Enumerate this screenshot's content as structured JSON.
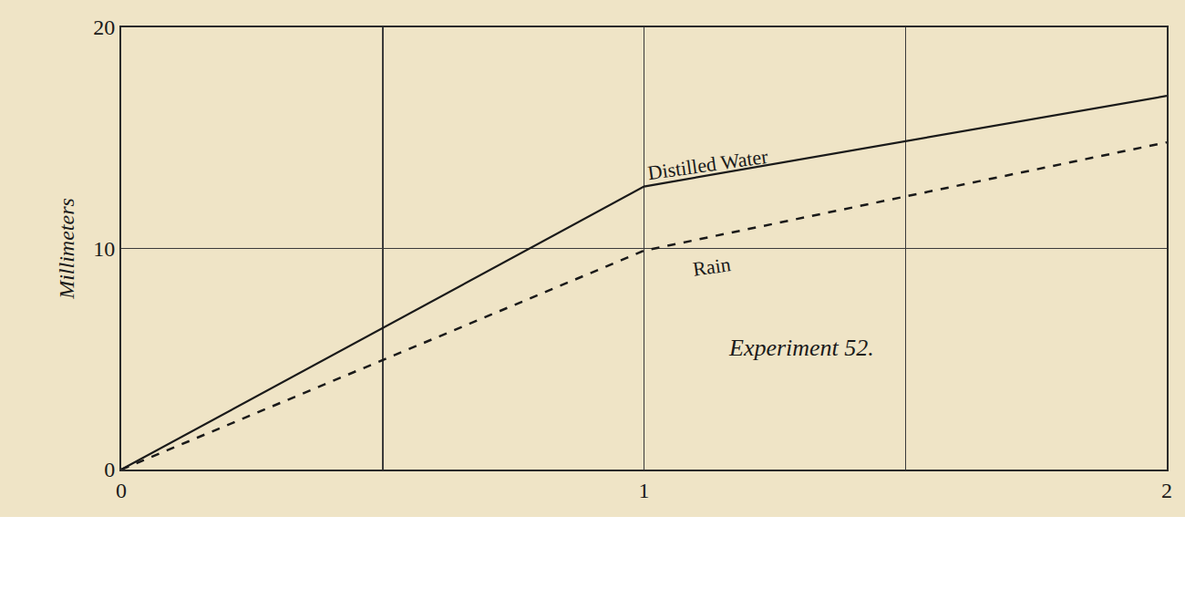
{
  "chart_data": {
    "type": "line",
    "x": [
      0,
      1,
      2
    ],
    "series": [
      {
        "name": "Distilled Water",
        "color": "#1a1a1a",
        "line_style": "solid",
        "values": [
          0,
          12.8,
          16.9
        ]
      },
      {
        "name": "Rain",
        "color": "#1a1a1a",
        "line_style": "dashed",
        "values": [
          0,
          9.9,
          14.8
        ]
      }
    ],
    "xlim": [
      0,
      2
    ],
    "xticks": [
      0,
      {
        "value": 0.5,
        "label": null
      },
      1,
      {
        "value": 1.5,
        "label": null
      },
      2
    ],
    "ylim": [
      0,
      20
    ],
    "yticks": [
      0,
      10,
      20
    ],
    "ylabel": "Millimeters",
    "annotation": "Experiment 52.",
    "grid": true
  }
}
